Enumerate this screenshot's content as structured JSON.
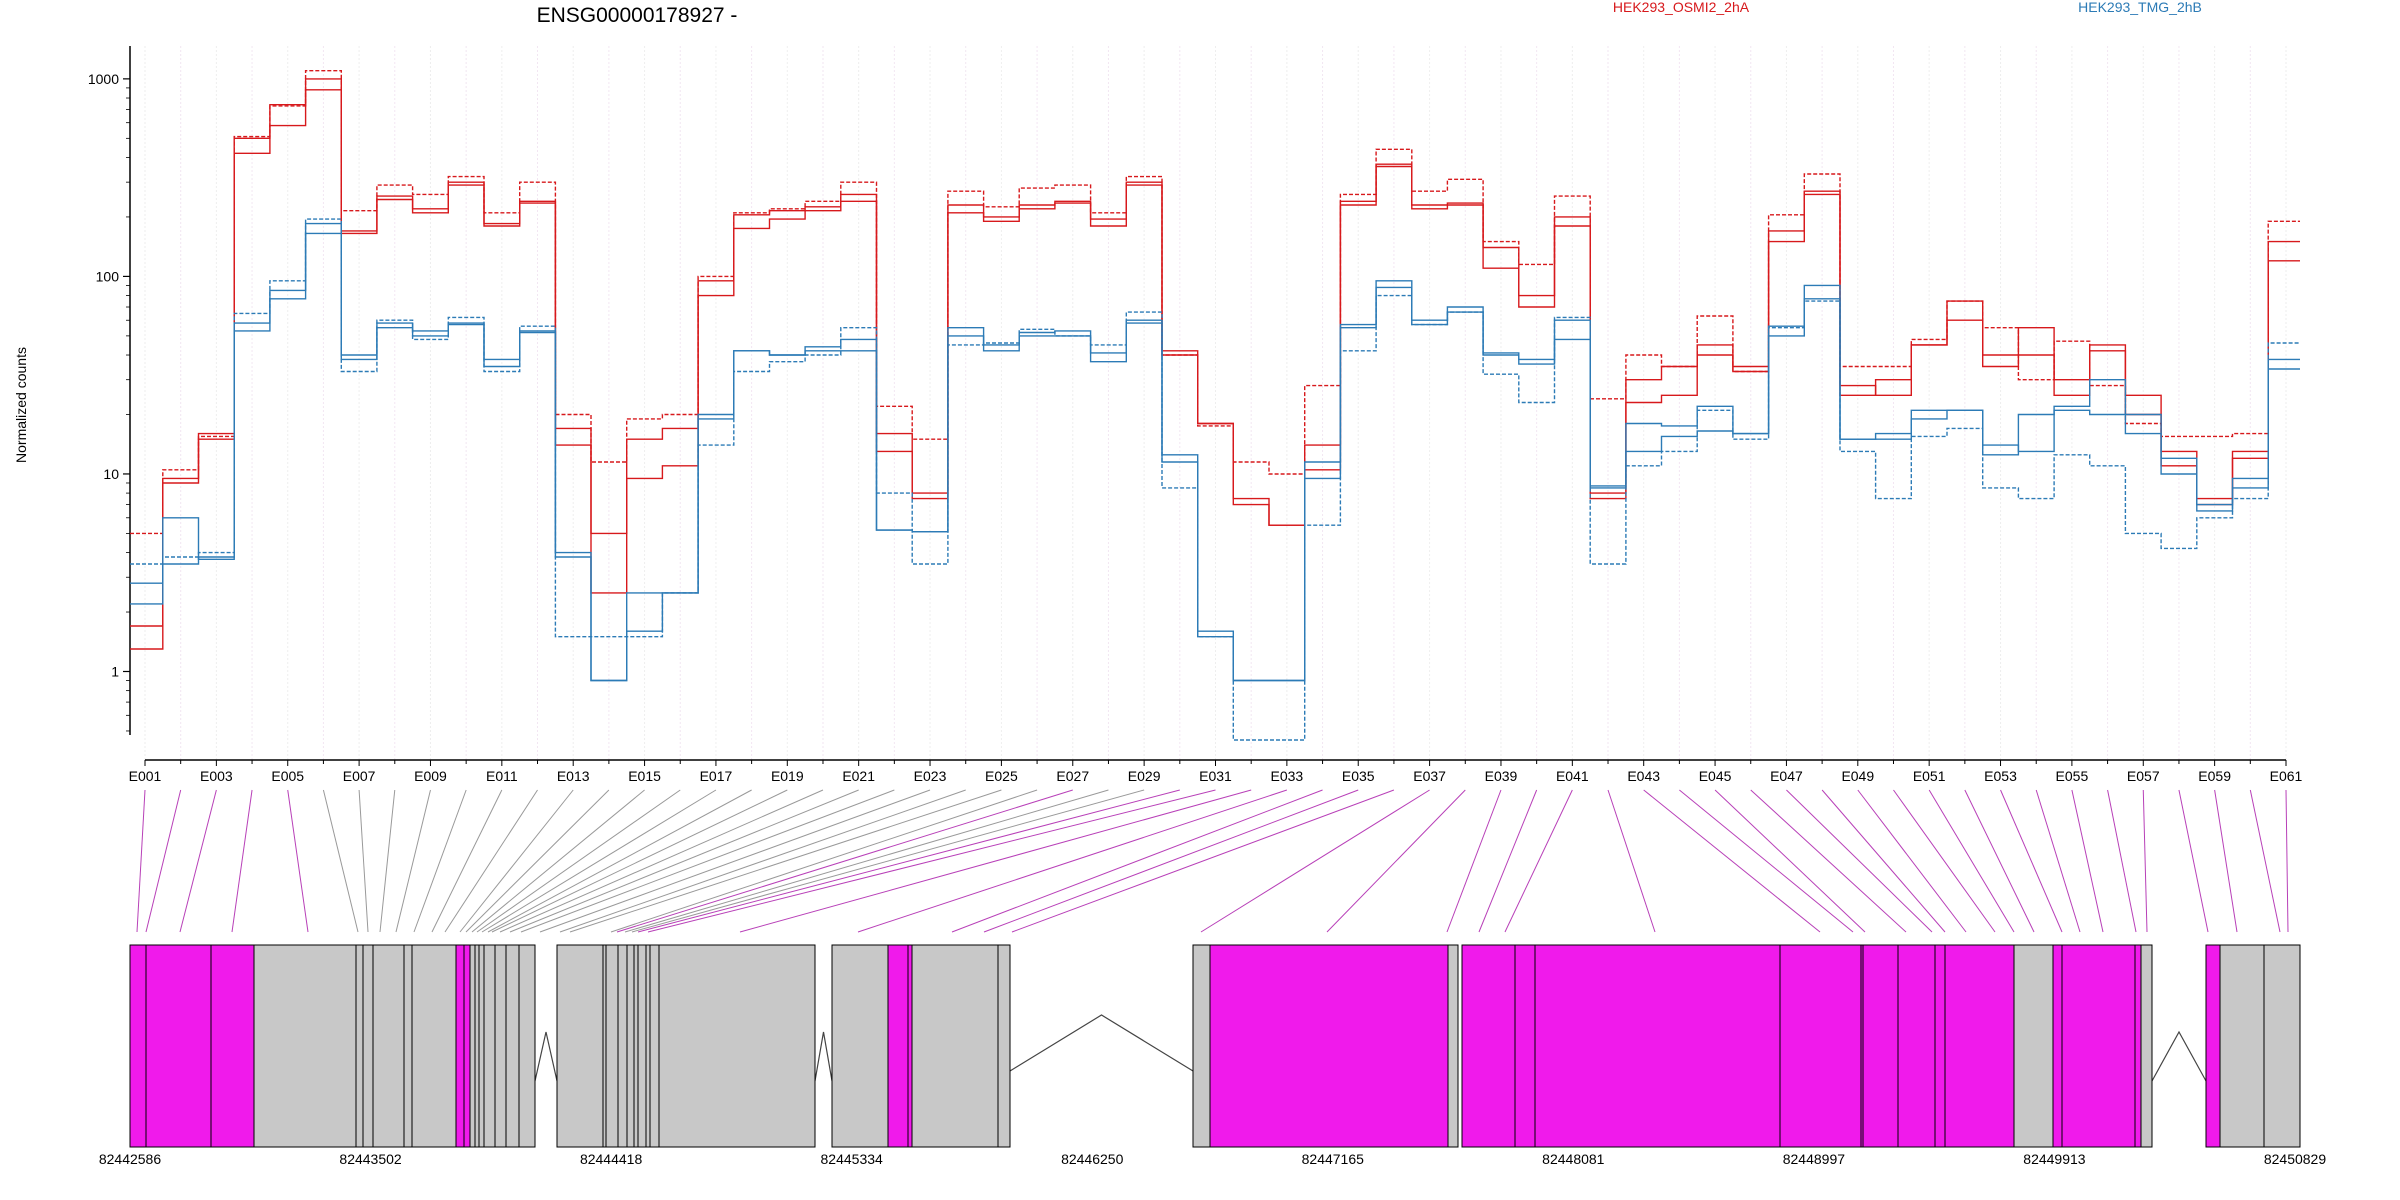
{
  "title": "ENSG00000178927 -",
  "colors": {
    "group_a": "#d7191c",
    "group_b": "#2c7bb6",
    "exon_de": "#f01aeb",
    "exon_other": "#c8c8c8",
    "grid": "#eeeeee"
  },
  "legend": [
    {
      "name": "HEK293_OSMI2_2hA",
      "color": "#d7191c"
    },
    {
      "name": "HEK293_TMG_2hB",
      "color": "#2c7bb6"
    }
  ],
  "chart_data": {
    "type": "line",
    "ylabel": "Normalized counts",
    "yscale": "log",
    "ylim": [
      0.45,
      1400
    ],
    "y_ticks": [
      "1",
      "10",
      "100",
      "1000"
    ],
    "y_tick_values": [
      1,
      10,
      100,
      1000
    ],
    "categories": [
      "E001",
      "E002",
      "E003",
      "E004",
      "E005",
      "E006",
      "E007",
      "E008",
      "E009",
      "E010",
      "E011",
      "E012",
      "E013",
      "E014",
      "E015",
      "E016",
      "E017",
      "E018",
      "E019",
      "E020",
      "E021",
      "E022",
      "E023",
      "E024",
      "E025",
      "E026",
      "E027",
      "E028",
      "E029",
      "E030",
      "E031",
      "E032",
      "E033",
      "E034",
      "E035",
      "E036",
      "E037",
      "E038",
      "E039",
      "E040",
      "E041",
      "E042",
      "E043",
      "E044",
      "E045",
      "E046",
      "E047",
      "E048",
      "E049",
      "E050",
      "E051",
      "E052",
      "E053",
      "E054",
      "E055",
      "E056",
      "E057",
      "E058",
      "E059",
      "E060",
      "E061"
    ],
    "x_tick_labels": [
      "E001",
      "E003",
      "E005",
      "E007",
      "E009",
      "E011",
      "E013",
      "E015",
      "E017",
      "E019",
      "E021",
      "E023",
      "E025",
      "E027",
      "E029",
      "E031",
      "E033",
      "E035",
      "E037",
      "E039",
      "E041",
      "E043",
      "E045",
      "E047",
      "E049",
      "E051",
      "E053",
      "E055",
      "E057",
      "E059",
      "E061"
    ],
    "series": [
      {
        "group": "HEK293_OSMI2_2hA",
        "style": "solid",
        "values": [
          1.7,
          9,
          16,
          420,
          580,
          1000,
          165,
          255,
          220,
          290,
          185,
          240,
          17,
          2.5,
          9.5,
          11,
          80,
          175,
          195,
          215,
          240,
          16,
          8,
          210,
          200,
          230,
          240,
          195,
          290,
          42,
          18,
          7.5,
          5.5,
          10.5,
          230,
          360,
          220,
          235,
          140,
          80,
          200,
          8,
          23,
          25,
          40,
          35,
          150,
          260,
          28,
          25,
          45,
          60,
          35,
          55,
          30,
          42,
          25,
          13,
          7.5,
          13,
          150
        ]
      },
      {
        "group": "HEK293_OSMI2_2hA",
        "style": "solid",
        "values": [
          1.3,
          9.5,
          15,
          500,
          740,
          880,
          170,
          245,
          210,
          300,
          180,
          235,
          14,
          5,
          15,
          17,
          95,
          205,
          215,
          225,
          260,
          13,
          7.5,
          230,
          190,
          220,
          235,
          180,
          300,
          40,
          18,
          7,
          5.5,
          14,
          240,
          370,
          230,
          230,
          110,
          70,
          180,
          7.5,
          30,
          35,
          45,
          33,
          170,
          270,
          25,
          30,
          45,
          75,
          40,
          40,
          25,
          45,
          20,
          11,
          7,
          12,
          120
        ]
      },
      {
        "group": "HEK293_OSMI2_2hA",
        "style": "dashed",
        "values": [
          5,
          10.5,
          15.5,
          510,
          730,
          1100,
          215,
          290,
          260,
          320,
          210,
          300,
          20,
          11.5,
          19,
          20,
          100,
          210,
          220,
          240,
          300,
          22,
          15,
          270,
          225,
          280,
          290,
          210,
          320,
          40,
          17.5,
          11.5,
          10,
          28,
          260,
          440,
          270,
          310,
          150,
          115,
          255,
          24,
          40,
          35,
          63,
          33,
          205,
          330,
          35,
          35,
          48,
          75,
          55,
          30,
          47,
          28,
          18,
          15.5,
          15.5,
          16,
          190
        ]
      },
      {
        "group": "HEK293_TMG_2hB",
        "style": "solid",
        "values": [
          2.2,
          3.5,
          3.8,
          58,
          85,
          165,
          38,
          58,
          50,
          58,
          35,
          52,
          3.8,
          0.9,
          2.5,
          2.5,
          19,
          42,
          40,
          44,
          48,
          5.2,
          5.1,
          55,
          45,
          52,
          53,
          41,
          60,
          12.5,
          1.6,
          0.9,
          0.9,
          11.5,
          55,
          95,
          60,
          66,
          40,
          38,
          60,
          8.5,
          18,
          17.5,
          22,
          16,
          50,
          90,
          15,
          15,
          19,
          21,
          14,
          13,
          21,
          20,
          20,
          10,
          7,
          8.5,
          38
        ]
      },
      {
        "group": "HEK293_TMG_2hB",
        "style": "solid",
        "values": [
          2.8,
          6,
          3.7,
          53,
          77,
          185,
          40,
          55,
          53,
          57,
          38,
          53,
          4,
          0.9,
          1.6,
          2.5,
          20,
          42,
          40,
          42,
          42,
          5.2,
          5.1,
          50,
          42,
          50,
          50,
          37,
          58,
          11.5,
          1.5,
          0.9,
          0.9,
          9.5,
          57,
          88,
          57,
          70,
          41,
          36,
          48,
          8.7,
          13,
          15.5,
          16.5,
          16,
          56,
          77,
          15,
          16,
          21,
          21,
          12.5,
          20,
          22,
          30,
          16,
          12,
          6.5,
          9.5,
          34
        ]
      },
      {
        "group": "HEK293_TMG_2hB",
        "style": "dashed",
        "values": [
          3.5,
          3.8,
          4,
          65,
          95,
          195,
          33,
          60,
          48,
          62,
          33,
          56,
          1.5,
          1.5,
          1.5,
          2.5,
          14,
          33,
          37,
          40,
          55,
          8,
          3.5,
          45,
          46,
          54,
          50,
          45,
          66,
          8.5,
          1.5,
          0.45,
          0.45,
          5.5,
          42,
          80,
          57,
          66,
          32,
          23,
          62,
          3.5,
          11,
          13,
          21,
          15,
          55,
          75,
          13,
          7.5,
          15.5,
          17,
          8.5,
          7.5,
          12.5,
          11,
          5,
          4.2,
          6,
          7.5,
          46
        ]
      }
    ]
  },
  "genome_axis": {
    "tick_labels": [
      "82442586",
      "82443502",
      "82444418",
      "82445334",
      "82446250",
      "82447165",
      "82448081",
      "82448997",
      "82449913",
      "82450829"
    ]
  },
  "gene_model": {
    "blocks": [
      {
        "de": true
      },
      {
        "de": true
      },
      {
        "de": true
      },
      {
        "de": false
      },
      {
        "de": false
      },
      {
        "de": false
      },
      {
        "de": true
      },
      {
        "de": false
      },
      {
        "de": false
      },
      {
        "de": false
      },
      {
        "de": false
      },
      {
        "de": false
      },
      {
        "de": false
      },
      {
        "de": false
      },
      {
        "de": false
      },
      {
        "de": false
      },
      {
        "de": false
      },
      {
        "de": false
      },
      {
        "de": true
      },
      {
        "de": false
      },
      {
        "de": false
      },
      {
        "de": false
      },
      {
        "de": true
      },
      {
        "de": true
      },
      {
        "de": true
      },
      {
        "de": true
      },
      {
        "de": true
      },
      {
        "de": true
      },
      {
        "de": true
      },
      {
        "de": true
      },
      {
        "de": true
      },
      {
        "de": false
      },
      {
        "de": true
      },
      {
        "de": true
      },
      {
        "de": true
      },
      {
        "de": true
      },
      {
        "de": true
      },
      {
        "de": true
      },
      {
        "de": false
      },
      {
        "de": true
      },
      {
        "de": false
      }
    ],
    "connector_de": [
      true,
      true,
      true,
      true,
      true,
      false,
      false,
      false,
      false,
      false,
      false,
      false,
      false,
      false,
      false,
      false,
      false,
      false,
      false,
      false,
      false,
      false,
      false,
      false,
      false,
      false,
      true,
      false,
      false,
      true,
      true,
      true,
      true,
      true,
      true,
      true,
      true,
      true,
      true,
      true,
      true,
      true,
      true,
      true,
      true,
      true,
      true,
      true,
      true,
      true,
      true,
      true,
      true,
      true,
      true,
      true,
      true,
      true,
      true,
      true,
      true
    ]
  }
}
